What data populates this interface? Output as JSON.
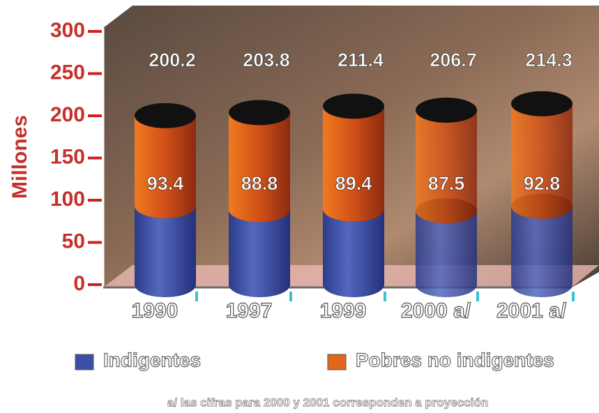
{
  "chart_data": {
    "type": "stacked-cylinder",
    "y_label": "Millones",
    "categories": [
      "1990",
      "1997",
      "1999",
      "2000 a/",
      "2001 a/"
    ],
    "series": [
      {
        "name": "Indigentes",
        "color": "#3b4fa6",
        "values": [
          93.4,
          88.8,
          89.4,
          87.5,
          92.8
        ]
      },
      {
        "name": "Pobres no indigentes",
        "color": "#e2661c",
        "values": [
          106.8,
          115.0,
          122.0,
          119.2,
          121.5
        ]
      }
    ],
    "totals": [
      200.2,
      203.8,
      211.4,
      206.7,
      214.3
    ],
    "ylim": [
      0,
      300
    ],
    "yticks": [
      0,
      50,
      100,
      150,
      200,
      250,
      300
    ],
    "footnote": "a/ las cifras para 2000 y 2001 corresponden a proyección"
  }
}
